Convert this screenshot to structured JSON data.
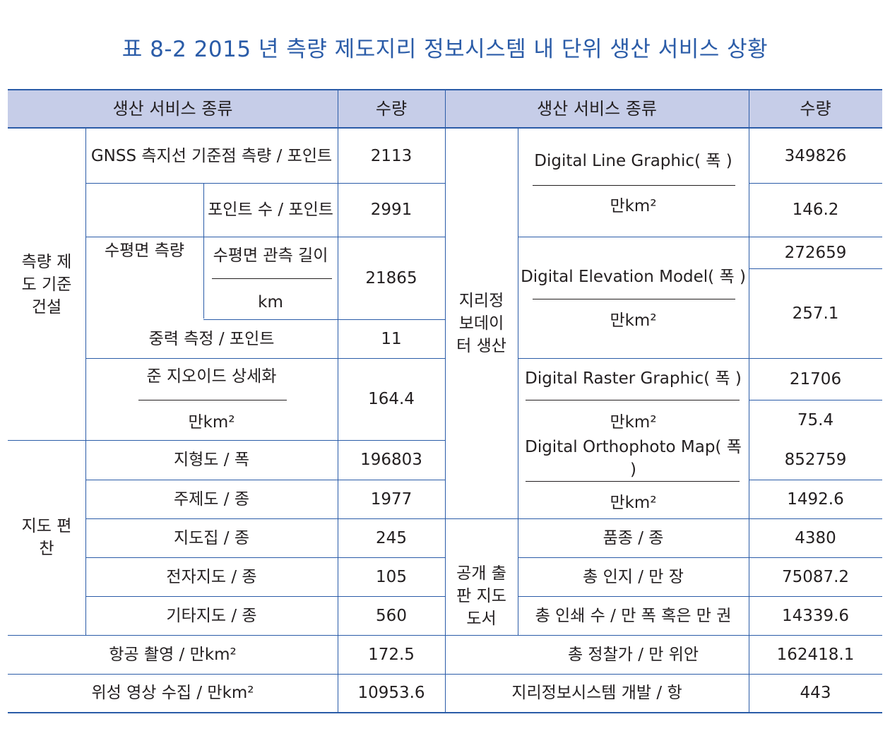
{
  "title": "표 8-2 2015 년 측량 제도지리 정보시스템 내 단위 생산 서비스 상황",
  "header": {
    "left_type": "생산 서비스 종류",
    "left_qty": "수량",
    "right_type": "생산 서비스 종류",
    "right_qty": "수량"
  },
  "left": {
    "group_survey": "측량 제도 기준 건설",
    "gnss_label": "GNSS 측지선 기준점 측량 / 포인트",
    "gnss_value": "2113",
    "leveling_label": "수평면 측량",
    "leveling_points_label": "포인트 수 / 포인트",
    "leveling_points_value": "2991",
    "leveling_length_label": "수평면 관측 길이",
    "leveling_length_unit": "km",
    "leveling_length_value": "21865",
    "gravity_label": "중력 측정 / 포인트",
    "gravity_value": "11",
    "geoid_label": "준 지오이드 상세화",
    "geoid_unit": "만km²",
    "geoid_value": "164.4",
    "group_map": "지도 편찬",
    "topo_label": "지형도 / 폭",
    "topo_value": "196803",
    "thematic_label": "주제도 / 종",
    "thematic_value": "1977",
    "atlas_label": "지도집 / 종",
    "atlas_value": "245",
    "electronic_label": "전자지도 / 종",
    "electronic_value": "105",
    "other_label": "기타지도 / 종",
    "other_value": "560",
    "aerial_label": "항공 촬영 / 만km²",
    "aerial_value": "172.5",
    "satellite_label": "위성 영상 수집 / 만km²",
    "satellite_value": "10953.6"
  },
  "right": {
    "group_geo": "지리정보데이터 생산",
    "dlg_label": "Digital Line Graphic( 폭 )",
    "dlg_unit": "만km²",
    "dlg_value": "349826",
    "dlg_area": "146.2",
    "dem_label": "Digital Elevation Model( 폭 )",
    "dem_unit": "만km²",
    "dem_value": "272659",
    "dem_area": "257.1",
    "drg_label": "Digital Raster Graphic( 폭 )",
    "drg_unit": "만km²",
    "drg_value": "21706",
    "drg_area": "75.4",
    "dom_label": "Digital Orthophoto Map( 폭 )",
    "dom_unit": "만km²",
    "dom_value": "852759",
    "dom_area": "1492.6",
    "group_pub": "공개 출판 지도 도서",
    "varieties_label": "품종 / 종",
    "varieties_value": "4380",
    "print_label": "총 인지 / 만 장",
    "print_value": "75087.2",
    "copies_label": "총 인쇄 수 / 만 폭 혹은 만 권",
    "copies_value": "14339.6",
    "price_label": "총 정찰가 / 만 위안",
    "price_value": "162418.1",
    "gis_label": "지리정보시스템 개발 / 항",
    "gis_value": "443"
  }
}
